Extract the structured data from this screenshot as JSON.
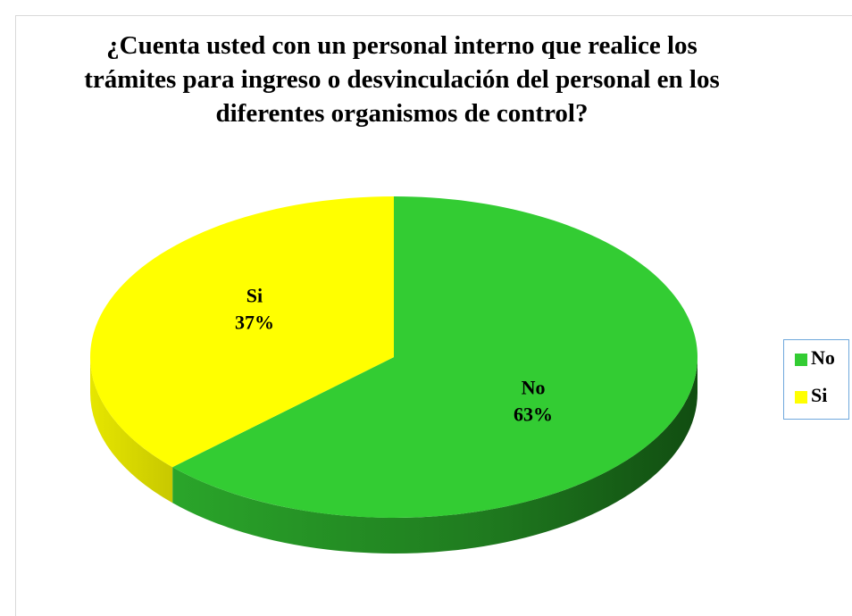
{
  "chart_data": {
    "type": "pie",
    "title": "¿Cuenta usted con un personal interno que realice los trámites para ingreso o desvinculación del personal en los diferentes organismos de control?",
    "categories": [
      "No",
      "Si"
    ],
    "values": [
      63,
      37
    ],
    "value_labels": [
      "63%",
      "37%"
    ],
    "colors": [
      "#33cc33",
      "#ffff00"
    ],
    "legend": "right"
  }
}
